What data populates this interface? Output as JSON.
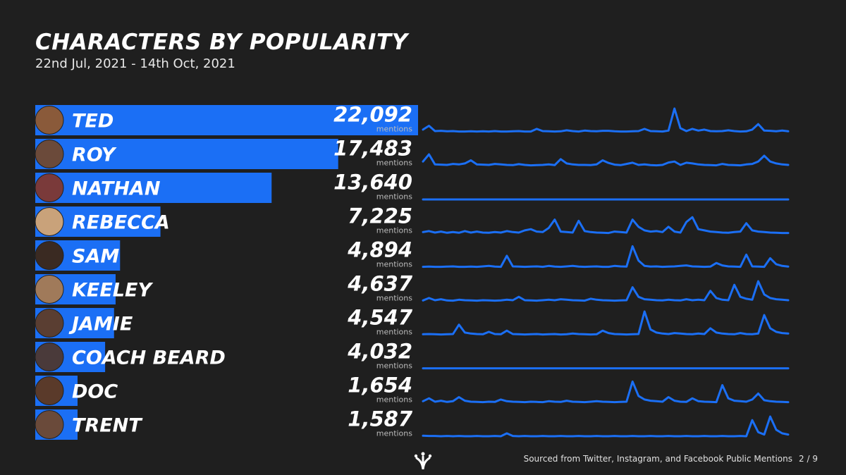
{
  "header": {
    "title": "CHARACTERS BY POPULARITY",
    "subtitle": "22nd Jul, 2021 - 14th Oct, 2021"
  },
  "footer": {
    "source": "Sourced from Twitter, Instagram, and Facebook Public Mentions",
    "page": "2 / 9"
  },
  "colors": {
    "background": "#1f1f1f",
    "bar": "#1b6ff5",
    "sparkline": "#1b6ff5",
    "text": "#ffffff",
    "subtext": "#bbbbbb"
  },
  "chart_data": {
    "type": "bar",
    "unit_label": "mentions",
    "categories": [
      "TED",
      "ROY",
      "NATHAN",
      "REBECCA",
      "SAM",
      "KEELEY",
      "JAMIE",
      "COACH BEARD",
      "DOC",
      "TRENT"
    ],
    "values": [
      22092,
      17483,
      13640,
      7225,
      4894,
      4637,
      4547,
      4032,
      1654,
      1587
    ],
    "value_labels": [
      "22,092",
      "17,483",
      "13,640",
      "7,225",
      "4,894",
      "4,637",
      "4,547",
      "4,032",
      "1,654",
      "1,587"
    ],
    "avatar_colors": [
      "#8a5a3a",
      "#6b4a3a",
      "#7a3a3a",
      "#c9a27a",
      "#3a2a22",
      "#a07a5a",
      "#5a3e32",
      "#4a3a3a",
      "#5a3a2a",
      "#6a4a3a"
    ],
    "xlim": [
      0,
      22092
    ],
    "sparklines": [
      [
        12,
        28,
        6,
        7,
        5,
        6,
        4,
        4,
        5,
        4,
        5,
        4,
        6,
        4,
        4,
        5,
        6,
        4,
        4,
        15,
        6,
        5,
        4,
        5,
        9,
        6,
        4,
        8,
        6,
        5,
        7,
        7,
        5,
        4,
        4,
        5,
        6,
        15,
        6,
        5,
        4,
        8,
        100,
        18,
        6,
        15,
        8,
        12,
        6,
        5,
        6,
        9,
        6,
        4,
        5,
        12,
        35,
        8,
        7,
        5,
        8,
        5
      ],
      [
        20,
        50,
        8,
        7,
        6,
        10,
        8,
        12,
        25,
        8,
        7,
        6,
        10,
        8,
        6,
        5,
        9,
        6,
        4,
        5,
        6,
        8,
        5,
        30,
        12,
        8,
        6,
        6,
        5,
        8,
        25,
        14,
        7,
        5,
        10,
        15,
        6,
        8,
        5,
        4,
        6,
        16,
        20,
        6,
        15,
        12,
        8,
        6,
        5,
        4,
        10,
        6,
        5,
        4,
        8,
        10,
        20,
        44,
        20,
        12,
        8,
        6
      ],
      [
        3,
        3,
        3,
        3,
        3,
        3,
        3,
        3,
        3,
        3,
        3,
        3,
        3,
        3,
        3,
        3,
        3,
        3,
        3,
        3,
        3,
        3,
        3,
        3,
        3,
        3,
        3,
        3,
        3,
        3,
        3,
        3,
        3,
        3,
        3,
        3,
        3,
        3,
        3,
        3,
        3,
        3,
        3,
        3,
        3,
        3,
        3,
        3,
        3,
        3,
        3,
        3,
        3,
        3,
        3,
        3,
        3,
        3,
        3,
        3,
        3,
        3
      ],
      [
        8,
        12,
        6,
        10,
        5,
        8,
        5,
        12,
        6,
        10,
        6,
        5,
        8,
        6,
        12,
        8,
        6,
        15,
        20,
        10,
        8,
        25,
        60,
        10,
        8,
        6,
        55,
        12,
        8,
        6,
        5,
        4,
        10,
        8,
        6,
        60,
        30,
        15,
        10,
        12,
        8,
        30,
        10,
        6,
        50,
        70,
        20,
        15,
        10,
        8,
        6,
        5,
        8,
        10,
        45,
        15,
        10,
        8,
        6,
        5,
        4,
        4
      ],
      [
        4,
        5,
        4,
        4,
        5,
        6,
        4,
        4,
        5,
        4,
        6,
        8,
        5,
        4,
        50,
        6,
        5,
        4,
        5,
        6,
        4,
        8,
        5,
        4,
        6,
        8,
        5,
        4,
        5,
        6,
        4,
        4,
        8,
        6,
        5,
        90,
        30,
        8,
        5,
        6,
        4,
        5,
        6,
        8,
        10,
        6,
        5,
        4,
        5,
        20,
        10,
        6,
        5,
        4,
        55,
        6,
        5,
        4,
        40,
        15,
        8,
        5
      ],
      [
        5,
        15,
        6,
        10,
        5,
        4,
        8,
        6,
        5,
        4,
        6,
        5,
        4,
        5,
        8,
        6,
        20,
        6,
        5,
        4,
        6,
        8,
        6,
        10,
        8,
        6,
        5,
        4,
        12,
        8,
        6,
        5,
        4,
        5,
        6,
        60,
        20,
        10,
        8,
        6,
        5,
        8,
        6,
        5,
        10,
        6,
        8,
        6,
        45,
        15,
        8,
        6,
        70,
        20,
        12,
        8,
        85,
        30,
        15,
        10,
        8,
        6
      ],
      [
        5,
        6,
        5,
        4,
        5,
        6,
        45,
        12,
        8,
        6,
        5,
        15,
        6,
        5,
        20,
        6,
        5,
        4,
        5,
        6,
        4,
        5,
        6,
        4,
        5,
        8,
        6,
        5,
        4,
        5,
        20,
        10,
        6,
        5,
        4,
        5,
        6,
        100,
        25,
        12,
        8,
        6,
        10,
        8,
        6,
        5,
        8,
        6,
        30,
        12,
        8,
        6,
        5,
        10,
        6,
        5,
        8,
        85,
        30,
        15,
        10,
        8
      ],
      [
        4,
        4,
        4,
        4,
        4,
        4,
        4,
        4,
        4,
        4,
        4,
        4,
        4,
        4,
        4,
        4,
        4,
        4,
        4,
        4,
        4,
        4,
        4,
        4,
        4,
        4,
        4,
        4,
        4,
        4,
        4,
        4,
        4,
        4,
        4,
        4,
        4,
        4,
        4,
        4,
        4,
        4,
        4,
        4,
        4,
        4,
        4,
        4,
        4,
        4,
        4,
        4,
        4,
        4,
        4,
        4,
        4,
        4,
        4,
        4,
        4,
        4
      ],
      [
        8,
        20,
        6,
        10,
        5,
        8,
        25,
        10,
        6,
        5,
        4,
        6,
        5,
        15,
        8,
        6,
        5,
        4,
        6,
        5,
        4,
        8,
        6,
        5,
        10,
        6,
        5,
        4,
        6,
        8,
        6,
        5,
        4,
        5,
        6,
        90,
        30,
        15,
        10,
        8,
        6,
        25,
        10,
        6,
        5,
        20,
        8,
        6,
        5,
        4,
        75,
        20,
        10,
        8,
        6,
        15,
        40,
        12,
        8,
        6,
        5,
        4
      ],
      [
        5,
        4,
        4,
        3,
        4,
        3,
        4,
        3,
        3,
        4,
        3,
        3,
        4,
        3,
        15,
        4,
        3,
        4,
        3,
        3,
        4,
        3,
        3,
        4,
        3,
        3,
        4,
        3,
        3,
        4,
        3,
        3,
        4,
        3,
        3,
        4,
        3,
        3,
        4,
        3,
        3,
        4,
        3,
        3,
        4,
        3,
        3,
        4,
        3,
        3,
        4,
        3,
        3,
        4,
        3,
        70,
        20,
        10,
        85,
        30,
        15,
        10
      ]
    ]
  }
}
